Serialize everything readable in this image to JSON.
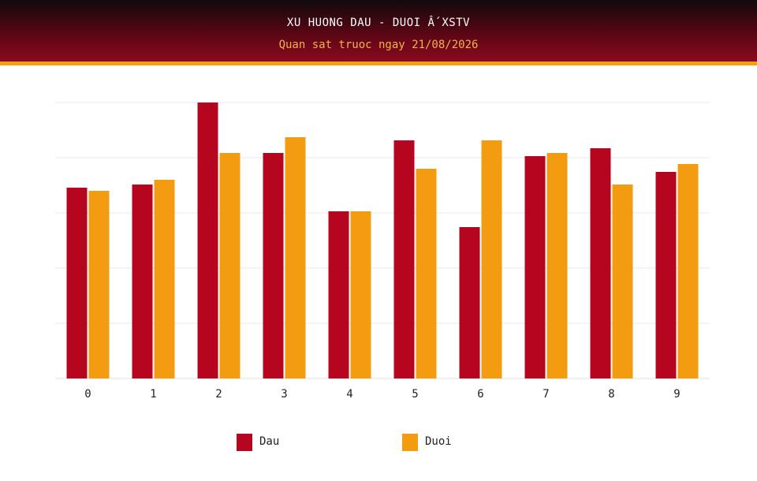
{
  "header": {
    "title": "XU HUONG DAU - DUOI Ấ XSTV",
    "subtitle": "Quan sat truoc ngay 21/08/2026"
  },
  "colors": {
    "dau": "#b5051f",
    "duoi": "#f39c12",
    "header_accent": "#f0a010"
  },
  "chart_data": {
    "type": "bar",
    "title": "XU HUONG DAU - DUOI Ấ XSTV",
    "subtitle": "Quan sat truoc ngay 21/08/2026",
    "categories": [
      "0",
      "1",
      "2",
      "3",
      "4",
      "5",
      "6",
      "7",
      "8",
      "9"
    ],
    "series": [
      {
        "name": "Dau",
        "values": [
          12.1,
          12.3,
          17.5,
          14.3,
          10.6,
          15.1,
          9.6,
          14.1,
          14.6,
          13.1
        ]
      },
      {
        "name": "Duoi",
        "values": [
          11.9,
          12.6,
          14.3,
          15.3,
          10.6,
          13.3,
          15.1,
          14.3,
          12.3,
          13.6
        ]
      }
    ],
    "xlabel": "",
    "ylabel": "",
    "ylim": [
      0,
      17.5
    ],
    "grid": true,
    "legend_position": "bottom"
  }
}
